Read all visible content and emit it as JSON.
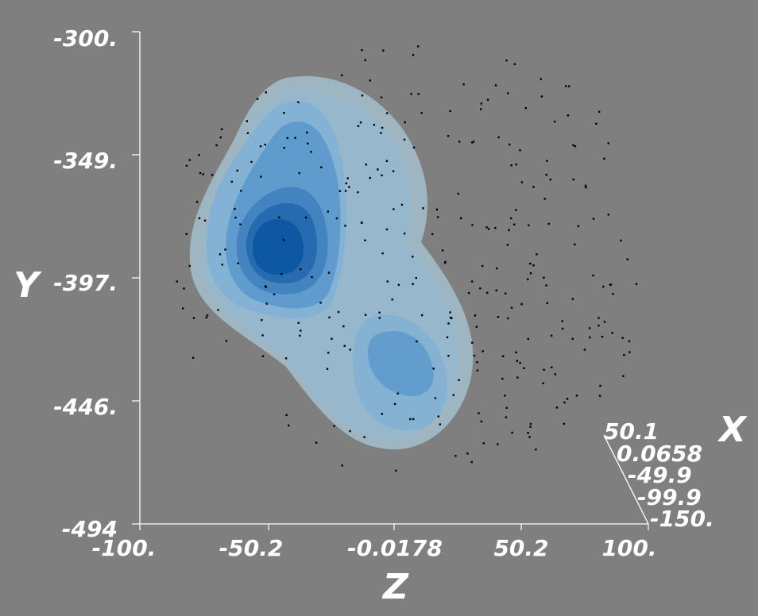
{
  "chart_data": {
    "type": "3d-density-isosurface-with-scatter",
    "axes": {
      "y": {
        "label": "Y",
        "range": [
          -494,
          -300
        ],
        "ticks": [
          "-300.",
          "-349.",
          "-397.",
          "-446.",
          "-494"
        ]
      },
      "z": {
        "label": "Z",
        "range": [
          -100,
          100
        ],
        "ticks": [
          "-100.",
          "-50.2",
          "-0.0178",
          "50.2",
          "100."
        ]
      },
      "x": {
        "label": "X",
        "range": [
          -150,
          50.1
        ],
        "ticks": [
          "50.1",
          "0.0658",
          "-49.9",
          "-99.9",
          "-150."
        ]
      }
    },
    "density_contours": {
      "levels": 6,
      "colors": [
        "#a2bcc9",
        "#95b8ce",
        "#7fb0d6",
        "#5a97cc",
        "#3e7fbd",
        "#2468ad",
        "#0d56a0"
      ],
      "peaks": [
        {
          "z": -45,
          "y": -387,
          "relative_density": 1.0
        },
        {
          "z": 5,
          "y": -430,
          "relative_density": 0.45
        }
      ]
    },
    "scatter": {
      "description_color": "#000000",
      "approx_point_count": 320
    },
    "background_color": "#7f7f7f"
  }
}
